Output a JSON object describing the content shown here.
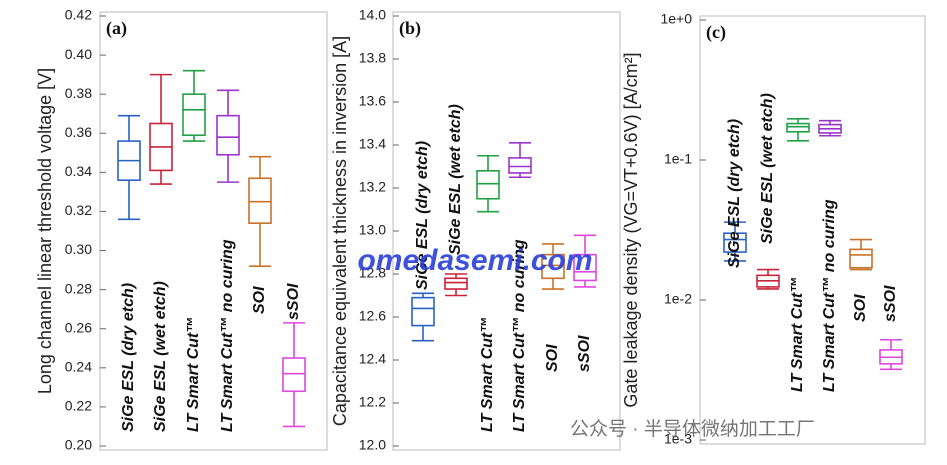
{
  "chart_data": [
    {
      "type": "box",
      "panel_label": "(a)",
      "ylabel": "Long channel linear threshold voltage [V]",
      "categories": [
        "SiGe ESL (dry etch)",
        "SiGe ESL (wet etch)",
        "LT Smart Cut™",
        "LT Smart Cut™ no curing",
        "SOI",
        "sSOI"
      ],
      "colors": [
        "#2a62c4",
        "#c8243c",
        "#22a046",
        "#9b34cc",
        "#c8732a",
        "#e046e0"
      ],
      "boxes": [
        {
          "whisker_high": 0.369,
          "q3": 0.356,
          "median": 0.346,
          "q1": 0.336,
          "whisker_low": 0.316
        },
        {
          "whisker_high": 0.39,
          "q3": 0.365,
          "median": 0.353,
          "q1": 0.341,
          "whisker_low": 0.334
        },
        {
          "whisker_high": 0.392,
          "q3": 0.38,
          "median": 0.372,
          "q1": 0.359,
          "whisker_low": 0.356
        },
        {
          "whisker_high": 0.382,
          "q3": 0.369,
          "median": 0.358,
          "q1": 0.349,
          "whisker_low": 0.335
        },
        {
          "whisker_high": 0.348,
          "q3": 0.337,
          "median": 0.325,
          "q1": 0.314,
          "whisker_low": 0.292
        },
        {
          "whisker_high": 0.263,
          "q3": 0.245,
          "median": 0.237,
          "q1": 0.228,
          "whisker_low": 0.21
        }
      ],
      "ylim": [
        0.2,
        0.42
      ],
      "yticks": [
        {
          "value": 0.2,
          "label": "0.20"
        },
        0.22,
        0.24,
        0.26,
        0.28,
        {
          "value": 0.3,
          "label": "0.30"
        },
        0.32,
        0.34,
        0.36,
        0.38,
        {
          "value": 0.4,
          "label": "0.40"
        },
        0.42
      ]
    },
    {
      "type": "box",
      "panel_label": "(b)",
      "ylabel": "Capacitance equivalent thickness in inversion [A]",
      "categories": [
        "SiGe ESL (dry etch)",
        "SiGe ESL (wet etch)",
        "LT Smart Cut™",
        "LT Smart Cut™ no curing",
        "SOI",
        "sSOI"
      ],
      "colors": [
        "#2a62c4",
        "#c8243c",
        "#22a046",
        "#9b34cc",
        "#c8732a",
        "#e046e0"
      ],
      "boxes": [
        {
          "whisker_high": 12.71,
          "q3": 12.69,
          "median": 12.64,
          "q1": 12.56,
          "whisker_low": 12.49
        },
        {
          "whisker_high": 12.8,
          "q3": 12.78,
          "median": 12.76,
          "q1": 12.73,
          "whisker_low": 12.7
        },
        {
          "whisker_high": 13.35,
          "q3": 13.28,
          "median": 13.22,
          "q1": 13.15,
          "whisker_low": 13.09
        },
        {
          "whisker_high": 13.41,
          "q3": 13.34,
          "median": 13.3,
          "q1": 13.27,
          "whisker_low": 13.25
        },
        {
          "whisker_high": 12.94,
          "q3": 12.89,
          "median": 12.84,
          "q1": 12.78,
          "whisker_low": 12.73
        },
        {
          "whisker_high": 12.98,
          "q3": 12.89,
          "median": 12.81,
          "q1": 12.77,
          "whisker_low": 12.74
        }
      ],
      "ylim": [
        12.0,
        14.0
      ],
      "yticks": [
        {
          "value": 12,
          "label": "12.0"
        },
        12.2,
        12.4,
        12.6,
        12.8,
        {
          "value": 13,
          "label": "13.0"
        },
        13.2,
        13.4,
        13.6,
        13.8,
        {
          "value": 14,
          "label": "14.0"
        }
      ]
    },
    {
      "type": "box",
      "panel_label": "(c)",
      "ylabel": "Gate leakage density (VG=VT+0.6V) [A/cm²]",
      "log_scale": true,
      "categories": [
        "SiGe ESL (dry etch)",
        "SiGe ESL (wet etch)",
        "LT Smart Cut™",
        "LT Smart Cut™ no curing",
        "SOI",
        "sSOI"
      ],
      "colors": [
        "#2a62c4",
        "#c8243c",
        "#22a046",
        "#9b34cc",
        "#c8732a",
        "#e046e0"
      ],
      "boxes": [
        {
          "whisker_high": 0.036,
          "q3": 0.03,
          "median": 0.027,
          "q1": 0.022,
          "whisker_low": 0.019
        },
        {
          "whisker_high": 0.0165,
          "q3": 0.015,
          "median": 0.0137,
          "q1": 0.0124,
          "whisker_low": 0.012
        },
        {
          "whisker_high": 0.197,
          "q3": 0.182,
          "median": 0.173,
          "q1": 0.159,
          "whisker_low": 0.137
        },
        {
          "whisker_high": 0.191,
          "q3": 0.179,
          "median": 0.167,
          "q1": 0.156,
          "whisker_low": 0.149
        },
        {
          "whisker_high": 0.027,
          "q3": 0.023,
          "median": 0.021,
          "q1": 0.017,
          "whisker_low": 0.0165
        },
        {
          "whisker_high": 0.0052,
          "q3": 0.0044,
          "median": 0.0039,
          "q1": 0.0035,
          "whisker_low": 0.0032
        }
      ],
      "ylim": [
        0.001,
        1
      ],
      "yticks": [
        {
          "value": 0.001,
          "label": "1e-3"
        },
        {
          "value": 0.01,
          "label": "1e-2"
        },
        {
          "value": 0.1,
          "label": "1e-1"
        },
        {
          "value": 1,
          "label": "1e+0"
        }
      ]
    }
  ],
  "watermarks": [
    "omedasemi.com",
    "公众号 · 半导体微纳加工工厂"
  ]
}
